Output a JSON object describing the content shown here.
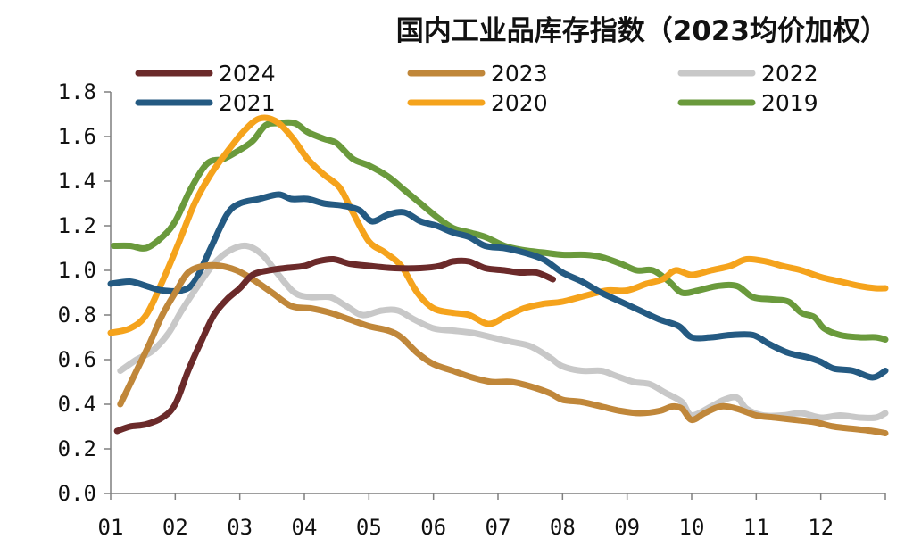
{
  "chart_data": {
    "type": "line",
    "title": "国内工业品库存指数（2023均价加权）",
    "xlabel": "",
    "ylabel": "",
    "x_ticks": [
      "01",
      "02",
      "03",
      "04",
      "05",
      "06",
      "07",
      "08",
      "09",
      "10",
      "11",
      "12"
    ],
    "xlim": [
      1,
      13
    ],
    "ylim": [
      0,
      1.8
    ],
    "y_ticks": [
      "0.0",
      "0.2",
      "0.4",
      "0.6",
      "0.8",
      "1.0",
      "1.2",
      "1.4",
      "1.6",
      "1.8"
    ],
    "grid": false,
    "legend": "top, two rows",
    "series": [
      {
        "name": "2024",
        "color": "#6b2a2a",
        "points": [
          [
            1.1,
            0.28
          ],
          [
            1.3,
            0.3
          ],
          [
            1.55,
            0.31
          ],
          [
            1.8,
            0.34
          ],
          [
            2.0,
            0.4
          ],
          [
            2.2,
            0.55
          ],
          [
            2.4,
            0.68
          ],
          [
            2.6,
            0.8
          ],
          [
            2.8,
            0.87
          ],
          [
            3.0,
            0.92
          ],
          [
            3.2,
            0.98
          ],
          [
            3.45,
            1.0
          ],
          [
            3.7,
            1.01
          ],
          [
            4.0,
            1.02
          ],
          [
            4.2,
            1.04
          ],
          [
            4.45,
            1.05
          ],
          [
            4.7,
            1.03
          ],
          [
            5.0,
            1.02
          ],
          [
            5.4,
            1.01
          ],
          [
            5.8,
            1.01
          ],
          [
            6.1,
            1.02
          ],
          [
            6.3,
            1.04
          ],
          [
            6.55,
            1.04
          ],
          [
            6.8,
            1.01
          ],
          [
            7.1,
            1.0
          ],
          [
            7.35,
            0.99
          ],
          [
            7.6,
            0.99
          ],
          [
            7.85,
            0.96
          ]
        ]
      },
      {
        "name": "2023",
        "color": "#c0873a",
        "points": [
          [
            1.15,
            0.4
          ],
          [
            1.4,
            0.55
          ],
          [
            1.6,
            0.67
          ],
          [
            1.8,
            0.8
          ],
          [
            2.0,
            0.9
          ],
          [
            2.2,
            0.99
          ],
          [
            2.45,
            1.02
          ],
          [
            2.7,
            1.02
          ],
          [
            2.95,
            1.0
          ],
          [
            3.2,
            0.96
          ],
          [
            3.5,
            0.9
          ],
          [
            3.8,
            0.84
          ],
          [
            4.1,
            0.83
          ],
          [
            4.4,
            0.81
          ],
          [
            4.7,
            0.78
          ],
          [
            5.0,
            0.75
          ],
          [
            5.3,
            0.73
          ],
          [
            5.5,
            0.7
          ],
          [
            5.75,
            0.63
          ],
          [
            6.0,
            0.58
          ],
          [
            6.3,
            0.55
          ],
          [
            6.6,
            0.52
          ],
          [
            6.9,
            0.5
          ],
          [
            7.2,
            0.5
          ],
          [
            7.5,
            0.48
          ],
          [
            7.8,
            0.45
          ],
          [
            8.0,
            0.42
          ],
          [
            8.3,
            0.41
          ],
          [
            8.6,
            0.39
          ],
          [
            8.9,
            0.37
          ],
          [
            9.2,
            0.36
          ],
          [
            9.5,
            0.37
          ],
          [
            9.7,
            0.39
          ],
          [
            9.85,
            0.38
          ],
          [
            10.0,
            0.33
          ],
          [
            10.2,
            0.36
          ],
          [
            10.45,
            0.39
          ],
          [
            10.7,
            0.38
          ],
          [
            11.0,
            0.35
          ],
          [
            11.3,
            0.34
          ],
          [
            11.6,
            0.33
          ],
          [
            11.9,
            0.32
          ],
          [
            12.2,
            0.3
          ],
          [
            12.5,
            0.29
          ],
          [
            12.8,
            0.28
          ],
          [
            13.0,
            0.27
          ]
        ]
      },
      {
        "name": "2022",
        "color": "#c8c8c8",
        "points": [
          [
            1.15,
            0.55
          ],
          [
            1.4,
            0.6
          ],
          [
            1.65,
            0.64
          ],
          [
            1.9,
            0.72
          ],
          [
            2.1,
            0.82
          ],
          [
            2.35,
            0.93
          ],
          [
            2.6,
            1.03
          ],
          [
            2.85,
            1.09
          ],
          [
            3.1,
            1.11
          ],
          [
            3.35,
            1.07
          ],
          [
            3.6,
            0.98
          ],
          [
            3.85,
            0.9
          ],
          [
            4.1,
            0.88
          ],
          [
            4.4,
            0.88
          ],
          [
            4.65,
            0.84
          ],
          [
            4.9,
            0.8
          ],
          [
            5.2,
            0.82
          ],
          [
            5.45,
            0.82
          ],
          [
            5.7,
            0.78
          ],
          [
            6.0,
            0.74
          ],
          [
            6.3,
            0.73
          ],
          [
            6.6,
            0.72
          ],
          [
            6.9,
            0.7
          ],
          [
            7.2,
            0.68
          ],
          [
            7.5,
            0.66
          ],
          [
            7.8,
            0.61
          ],
          [
            8.0,
            0.57
          ],
          [
            8.3,
            0.55
          ],
          [
            8.6,
            0.55
          ],
          [
            8.8,
            0.53
          ],
          [
            9.1,
            0.5
          ],
          [
            9.35,
            0.49
          ],
          [
            9.6,
            0.45
          ],
          [
            9.85,
            0.41
          ],
          [
            10.0,
            0.35
          ],
          [
            10.3,
            0.39
          ],
          [
            10.5,
            0.42
          ],
          [
            10.7,
            0.43
          ],
          [
            10.85,
            0.38
          ],
          [
            11.1,
            0.35
          ],
          [
            11.4,
            0.35
          ],
          [
            11.7,
            0.36
          ],
          [
            12.0,
            0.34
          ],
          [
            12.3,
            0.35
          ],
          [
            12.6,
            0.34
          ],
          [
            12.85,
            0.34
          ],
          [
            13.0,
            0.36
          ]
        ]
      },
      {
        "name": "2021",
        "color": "#245a82",
        "points": [
          [
            1.0,
            0.94
          ],
          [
            1.3,
            0.95
          ],
          [
            1.55,
            0.93
          ],
          [
            1.8,
            0.91
          ],
          [
            2.1,
            0.91
          ],
          [
            2.3,
            0.95
          ],
          [
            2.55,
            1.1
          ],
          [
            2.8,
            1.25
          ],
          [
            3.0,
            1.3
          ],
          [
            3.3,
            1.32
          ],
          [
            3.6,
            1.34
          ],
          [
            3.8,
            1.32
          ],
          [
            4.05,
            1.32
          ],
          [
            4.3,
            1.3
          ],
          [
            4.6,
            1.29
          ],
          [
            4.85,
            1.27
          ],
          [
            5.05,
            1.22
          ],
          [
            5.3,
            1.25
          ],
          [
            5.55,
            1.26
          ],
          [
            5.8,
            1.22
          ],
          [
            6.05,
            1.2
          ],
          [
            6.3,
            1.17
          ],
          [
            6.55,
            1.15
          ],
          [
            6.8,
            1.11
          ],
          [
            7.1,
            1.1
          ],
          [
            7.4,
            1.08
          ],
          [
            7.7,
            1.05
          ],
          [
            8.0,
            0.99
          ],
          [
            8.3,
            0.95
          ],
          [
            8.6,
            0.9
          ],
          [
            8.9,
            0.86
          ],
          [
            9.2,
            0.82
          ],
          [
            9.5,
            0.78
          ],
          [
            9.8,
            0.75
          ],
          [
            10.0,
            0.7
          ],
          [
            10.3,
            0.7
          ],
          [
            10.6,
            0.71
          ],
          [
            10.95,
            0.71
          ],
          [
            11.2,
            0.67
          ],
          [
            11.5,
            0.63
          ],
          [
            11.8,
            0.61
          ],
          [
            12.0,
            0.59
          ],
          [
            12.2,
            0.56
          ],
          [
            12.5,
            0.55
          ],
          [
            12.8,
            0.52
          ],
          [
            13.0,
            0.55
          ]
        ]
      },
      {
        "name": "2020",
        "color": "#f5a31c",
        "points": [
          [
            1.0,
            0.72
          ],
          [
            1.3,
            0.74
          ],
          [
            1.55,
            0.8
          ],
          [
            1.8,
            0.95
          ],
          [
            2.05,
            1.12
          ],
          [
            2.3,
            1.3
          ],
          [
            2.55,
            1.43
          ],
          [
            2.8,
            1.53
          ],
          [
            3.05,
            1.62
          ],
          [
            3.3,
            1.68
          ],
          [
            3.55,
            1.67
          ],
          [
            3.8,
            1.6
          ],
          [
            4.05,
            1.5
          ],
          [
            4.3,
            1.43
          ],
          [
            4.55,
            1.37
          ],
          [
            4.75,
            1.26
          ],
          [
            5.0,
            1.13
          ],
          [
            5.25,
            1.08
          ],
          [
            5.5,
            1.02
          ],
          [
            5.75,
            0.9
          ],
          [
            6.0,
            0.83
          ],
          [
            6.3,
            0.81
          ],
          [
            6.55,
            0.8
          ],
          [
            6.85,
            0.76
          ],
          [
            7.1,
            0.79
          ],
          [
            7.4,
            0.83
          ],
          [
            7.7,
            0.85
          ],
          [
            8.0,
            0.86
          ],
          [
            8.4,
            0.89
          ],
          [
            8.7,
            0.91
          ],
          [
            9.0,
            0.91
          ],
          [
            9.3,
            0.94
          ],
          [
            9.55,
            0.96
          ],
          [
            9.75,
            1.0
          ],
          [
            10.0,
            0.98
          ],
          [
            10.3,
            1.0
          ],
          [
            10.6,
            1.02
          ],
          [
            10.85,
            1.05
          ],
          [
            11.15,
            1.04
          ],
          [
            11.4,
            1.02
          ],
          [
            11.7,
            1.0
          ],
          [
            12.0,
            0.97
          ],
          [
            12.3,
            0.95
          ],
          [
            12.6,
            0.93
          ],
          [
            12.85,
            0.92
          ],
          [
            13.0,
            0.92
          ]
        ]
      },
      {
        "name": "2019",
        "color": "#6a9a3c",
        "points": [
          [
            1.05,
            1.11
          ],
          [
            1.3,
            1.11
          ],
          [
            1.55,
            1.1
          ],
          [
            1.8,
            1.15
          ],
          [
            2.0,
            1.22
          ],
          [
            2.25,
            1.37
          ],
          [
            2.5,
            1.48
          ],
          [
            2.75,
            1.5
          ],
          [
            3.0,
            1.54
          ],
          [
            3.2,
            1.58
          ],
          [
            3.4,
            1.65
          ],
          [
            3.6,
            1.66
          ],
          [
            3.85,
            1.66
          ],
          [
            4.05,
            1.62
          ],
          [
            4.3,
            1.59
          ],
          [
            4.5,
            1.57
          ],
          [
            4.75,
            1.5
          ],
          [
            5.0,
            1.47
          ],
          [
            5.3,
            1.42
          ],
          [
            5.55,
            1.36
          ],
          [
            5.8,
            1.3
          ],
          [
            6.05,
            1.24
          ],
          [
            6.3,
            1.19
          ],
          [
            6.55,
            1.17
          ],
          [
            6.8,
            1.15
          ],
          [
            7.1,
            1.11
          ],
          [
            7.4,
            1.09
          ],
          [
            7.7,
            1.08
          ],
          [
            8.0,
            1.07
          ],
          [
            8.35,
            1.07
          ],
          [
            8.6,
            1.06
          ],
          [
            8.9,
            1.03
          ],
          [
            9.15,
            1.0
          ],
          [
            9.4,
            1.0
          ],
          [
            9.65,
            0.95
          ],
          [
            9.85,
            0.9
          ],
          [
            10.1,
            0.91
          ],
          [
            10.4,
            0.93
          ],
          [
            10.7,
            0.93
          ],
          [
            10.95,
            0.88
          ],
          [
            11.25,
            0.87
          ],
          [
            11.5,
            0.86
          ],
          [
            11.7,
            0.81
          ],
          [
            11.9,
            0.79
          ],
          [
            12.05,
            0.74
          ],
          [
            12.3,
            0.71
          ],
          [
            12.6,
            0.7
          ],
          [
            12.85,
            0.7
          ],
          [
            13.0,
            0.69
          ]
        ]
      }
    ]
  }
}
